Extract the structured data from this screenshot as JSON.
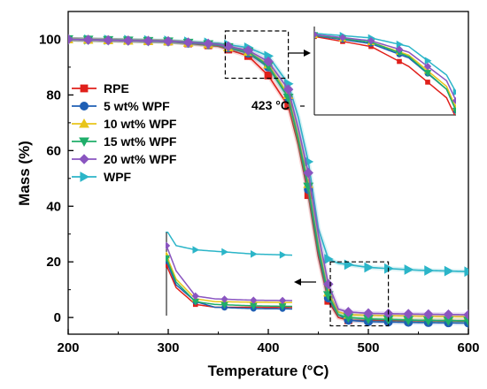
{
  "chart_data": {
    "type": "line",
    "xlabel": "Temperature (°C)",
    "ylabel": "Mass (%)",
    "xlim": [
      200,
      600
    ],
    "ylim": [
      -6,
      110
    ],
    "xticks": [
      200,
      300,
      400,
      500,
      600
    ],
    "yticks": [
      0,
      20,
      40,
      60,
      80,
      100
    ],
    "grid": false,
    "legend_position": "left",
    "annotation": "423 °C",
    "annotation_x": 423,
    "series": [
      {
        "name": "RPE",
        "color": "#e0201b",
        "marker": "square",
        "x": [
          200,
          250,
          300,
          350,
          380,
          400,
          420,
          430,
          440,
          450,
          460,
          470,
          480,
          500,
          550,
          600
        ],
        "y": [
          100,
          99.6,
          99.2,
          97.5,
          94,
          87,
          76,
          62,
          44,
          22,
          6,
          0,
          -1,
          -1,
          -1.2,
          -1.3
        ]
      },
      {
        "name": "5   wt% WPF",
        "color": "#1f5fb4",
        "marker": "circle",
        "x": [
          200,
          250,
          300,
          350,
          380,
          400,
          420,
          430,
          440,
          450,
          460,
          470,
          480,
          500,
          550,
          600
        ],
        "y": [
          100,
          99.6,
          99.2,
          97.8,
          95,
          90,
          79,
          64,
          46,
          24,
          7,
          1,
          -1,
          -1.5,
          -1.8,
          -2
        ]
      },
      {
        "name": "10 wt% WPF",
        "color": "#e8c51a",
        "marker": "triangle-up",
        "x": [
          200,
          250,
          300,
          350,
          380,
          400,
          420,
          430,
          440,
          450,
          460,
          470,
          480,
          500,
          550,
          600
        ],
        "y": [
          100,
          99.6,
          99.3,
          98,
          95.5,
          91,
          80,
          65,
          48,
          26,
          9,
          2,
          1,
          0.8,
          0.5,
          0.3
        ]
      },
      {
        "name": "15 wt% WPF",
        "color": "#1fae6a",
        "marker": "triangle-down",
        "x": [
          200,
          250,
          300,
          350,
          380,
          400,
          420,
          430,
          440,
          450,
          460,
          470,
          480,
          500,
          550,
          600
        ],
        "y": [
          100,
          99.6,
          99.2,
          98,
          95.5,
          90.5,
          79,
          64,
          47,
          25,
          8,
          1,
          0,
          -0.5,
          -1,
          -1.2
        ]
      },
      {
        "name": "20 wt% WPF",
        "color": "#8a55c0",
        "marker": "diamond",
        "x": [
          200,
          250,
          300,
          350,
          380,
          400,
          420,
          430,
          440,
          450,
          460,
          470,
          480,
          500,
          550,
          600
        ],
        "y": [
          100,
          99.6,
          99.3,
          98.2,
          96,
          92,
          82,
          68,
          52,
          30,
          12,
          3,
          2,
          1.5,
          1.2,
          1
        ]
      },
      {
        "name": "WPF",
        "color": "#2bb5c8",
        "marker": "triangle-right",
        "x": [
          200,
          250,
          300,
          350,
          380,
          400,
          420,
          430,
          440,
          450,
          460,
          470,
          480,
          500,
          550,
          600
        ],
        "y": [
          100,
          99.8,
          99.5,
          98.6,
          97,
          94,
          84,
          72,
          56,
          32,
          21,
          19.5,
          19,
          18,
          17,
          16.5
        ]
      }
    ]
  }
}
